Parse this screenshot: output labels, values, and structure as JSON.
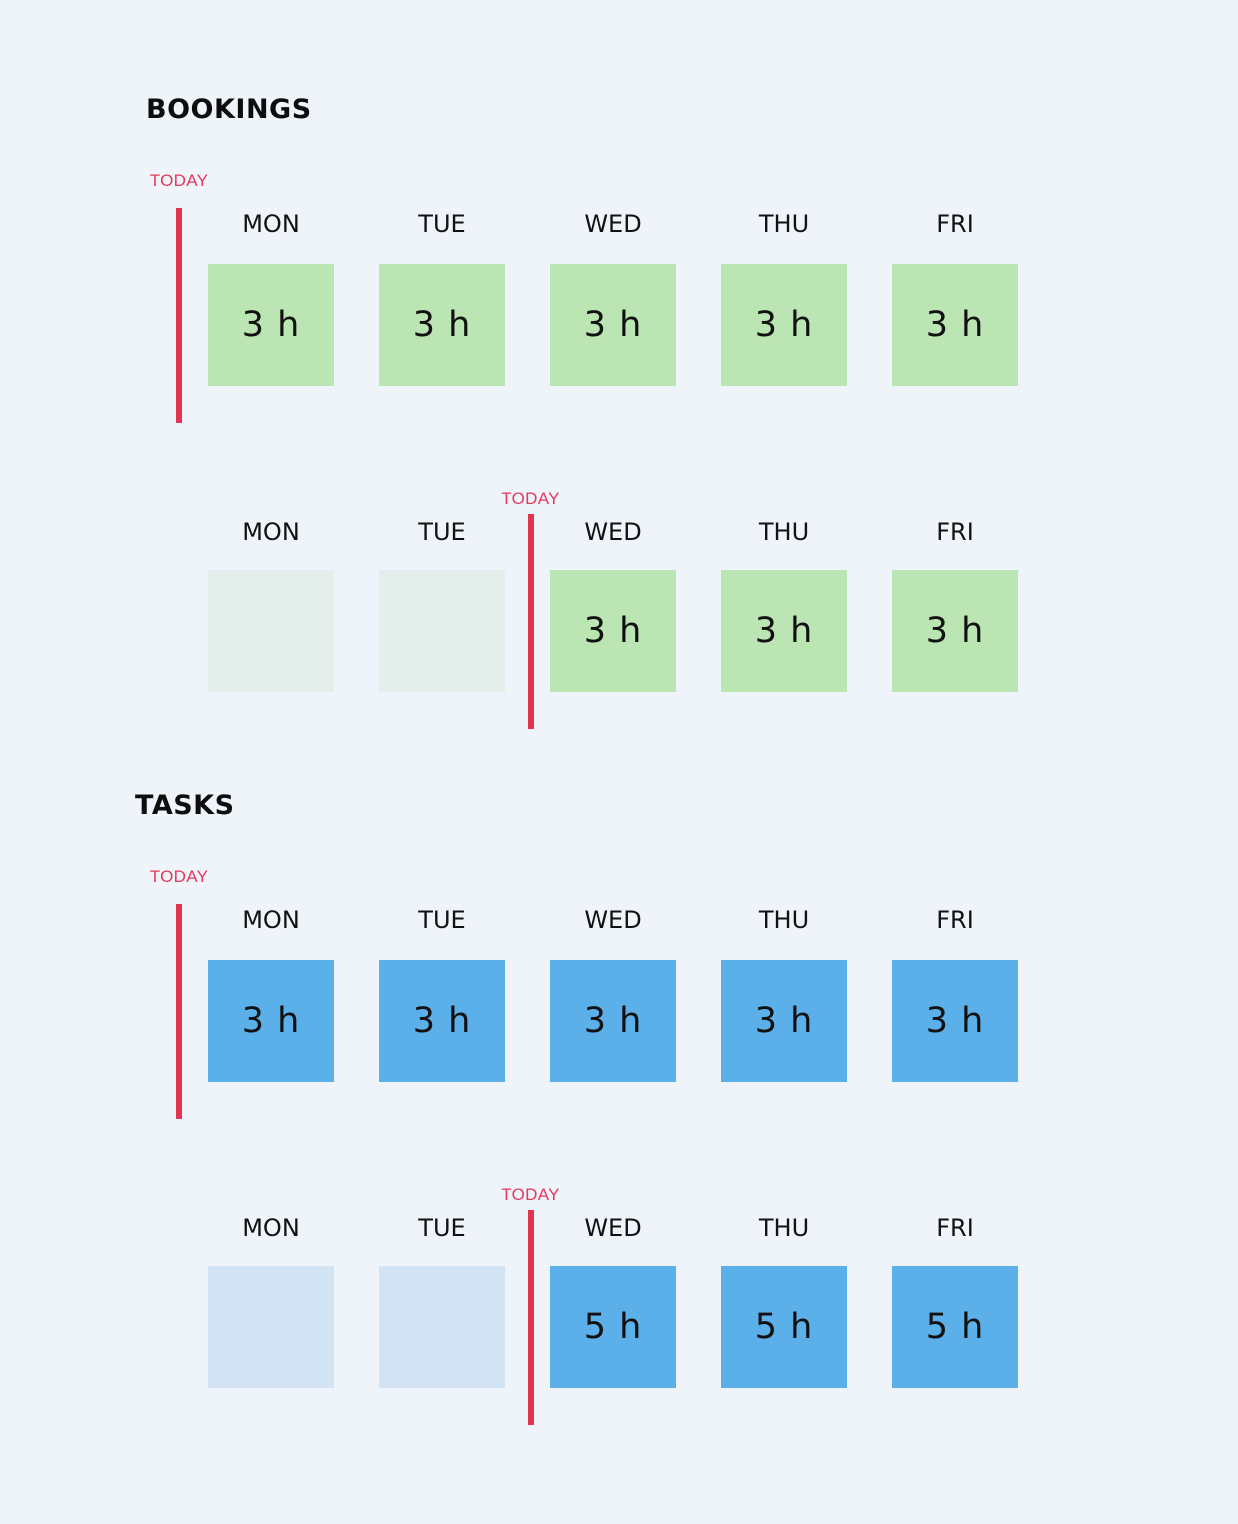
{
  "sections": [
    {
      "title": "BOOKINGS",
      "rows": [
        {
          "today_label": "TODAY",
          "today_after_day": 0,
          "days": [
            {
              "label": "MON",
              "value": "3 h",
              "active": true
            },
            {
              "label": "TUE",
              "value": "3 h",
              "active": true
            },
            {
              "label": "WED",
              "value": "3 h",
              "active": true
            },
            {
              "label": "THU",
              "value": "3 h",
              "active": true
            },
            {
              "label": "FRI",
              "value": "3 h",
              "active": true
            }
          ]
        },
        {
          "today_label": "TODAY",
          "today_after_day": 2,
          "days": [
            {
              "label": "MON",
              "value": "",
              "active": false
            },
            {
              "label": "TUE",
              "value": "",
              "active": false
            },
            {
              "label": "WED",
              "value": "3 h",
              "active": true
            },
            {
              "label": "THU",
              "value": "3 h",
              "active": true
            },
            {
              "label": "FRI",
              "value": "3 h",
              "active": true
            }
          ]
        }
      ],
      "colors": {
        "active": "#bce5b4",
        "inactive": "#e4eeea"
      }
    },
    {
      "title": "TASKS",
      "rows": [
        {
          "today_label": "TODAY",
          "today_after_day": 0,
          "days": [
            {
              "label": "MON",
              "value": "3 h",
              "active": true
            },
            {
              "label": "TUE",
              "value": "3 h",
              "active": true
            },
            {
              "label": "WED",
              "value": "3 h",
              "active": true
            },
            {
              "label": "THU",
              "value": "3 h",
              "active": true
            },
            {
              "label": "FRI",
              "value": "3 h",
              "active": true
            }
          ]
        },
        {
          "today_label": "TODAY",
          "today_after_day": 2,
          "days": [
            {
              "label": "MON",
              "value": "",
              "active": false
            },
            {
              "label": "TUE",
              "value": "",
              "active": false
            },
            {
              "label": "WED",
              "value": "5 h",
              "active": true
            },
            {
              "label": "THU",
              "value": "5 h",
              "active": true
            },
            {
              "label": "FRI",
              "value": "5 h",
              "active": true
            }
          ]
        }
      ],
      "colors": {
        "active": "#5bb0ea",
        "inactive": "#d2e4f4"
      }
    }
  ],
  "today_color": "#e0344f"
}
